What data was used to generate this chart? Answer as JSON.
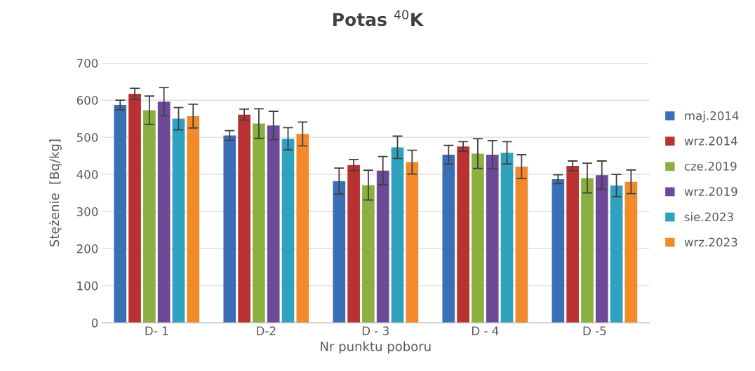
{
  "chart_data": {
    "type": "bar",
    "title": "Potas $^{40}$K",
    "xlabel": "Nr punktu poboru",
    "ylabel": "Stężenie  [Bq/kg]",
    "categories": [
      "D- 1",
      "D-2",
      "D - 3",
      "D - 4",
      "D -5"
    ],
    "series": [
      {
        "name": "maj.2014",
        "color": "#3a6fb5",
        "values": [
          587,
          505,
          382,
          453,
          387
        ],
        "errors": [
          13,
          13,
          35,
          25,
          12
        ]
      },
      {
        "name": "wrz.2014",
        "color": "#b93131",
        "values": [
          617,
          561,
          425,
          475,
          423
        ],
        "errors": [
          15,
          15,
          15,
          13,
          13
        ]
      },
      {
        "name": "cze.2019",
        "color": "#8bb040",
        "values": [
          573,
          537,
          371,
          456,
          390
        ],
        "errors": [
          38,
          40,
          40,
          40,
          40
        ]
      },
      {
        "name": "wrz.2019",
        "color": "#6c4a97",
        "values": [
          596,
          532,
          410,
          453,
          398
        ],
        "errors": [
          38,
          38,
          38,
          38,
          38
        ]
      },
      {
        "name": "sie.2023",
        "color": "#2fa2c0",
        "values": [
          550,
          496,
          473,
          458,
          370
        ],
        "errors": [
          30,
          30,
          30,
          30,
          30
        ]
      },
      {
        "name": "wrz.2023",
        "color": "#f28a2b",
        "values": [
          557,
          509,
          433,
          421,
          380
        ],
        "errors": [
          32,
          32,
          32,
          32,
          32
        ]
      }
    ],
    "ylim": [
      0,
      700
    ],
    "yticks": [
      0,
      100,
      200,
      300,
      400,
      500,
      600,
      700
    ],
    "grid": "y",
    "legend": "right"
  }
}
